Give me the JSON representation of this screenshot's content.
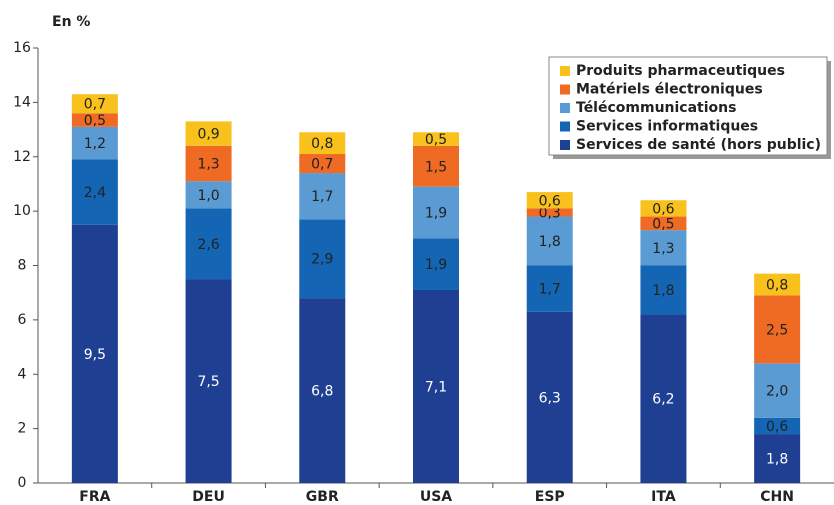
{
  "chart_data": {
    "type": "stacked-bar",
    "y_label": "En %",
    "categories": [
      "FRA",
      "DEU",
      "GBR",
      "USA",
      "ESP",
      "ITA",
      "CHN"
    ],
    "series": [
      {
        "name": "Services de santé (hors public)",
        "color": "#1f3f93",
        "values": [
          9.5,
          7.5,
          6.8,
          7.1,
          6.3,
          6.2,
          1.8
        ],
        "value_labels": [
          "9,5",
          "7,5",
          "6,8",
          "7,1",
          "6,3",
          "6,2",
          "1,8"
        ]
      },
      {
        "name": "Services informatiques",
        "color": "#1466b4",
        "values": [
          2.4,
          2.6,
          2.9,
          1.9,
          1.7,
          1.8,
          0.6
        ],
        "value_labels": [
          "2,4",
          "2,6",
          "2,9",
          "1,9",
          "1,7",
          "1,8",
          "0,6"
        ]
      },
      {
        "name": "Télécommunications",
        "color": "#5a9bd3",
        "values": [
          1.2,
          1.0,
          1.7,
          1.9,
          1.8,
          1.3,
          2.0
        ],
        "value_labels": [
          "1,2",
          "1,0",
          "1,7",
          "1,9",
          "1,8",
          "1,3",
          "2,0"
        ]
      },
      {
        "name": "Matériels électroniques",
        "color": "#ef6a22",
        "values": [
          0.5,
          1.3,
          0.7,
          1.5,
          0.3,
          0.5,
          2.5
        ],
        "value_labels": [
          "0,5",
          "1,3",
          "0,7",
          "1,5",
          "0,3",
          "0,5",
          "2,5"
        ]
      },
      {
        "name": "Produits pharmaceutiques",
        "color": "#f8c11c",
        "values": [
          0.7,
          0.9,
          0.8,
          0.5,
          0.6,
          0.6,
          0.8
        ],
        "value_labels": [
          "0,7",
          "0,9",
          "0,8",
          "0,5",
          "0,6",
          "0,6",
          "0,8"
        ]
      }
    ],
    "ylim": [
      0,
      16
    ],
    "yticks": [
      0,
      2,
      4,
      6,
      8,
      10,
      12,
      14,
      16
    ],
    "legend": "top-right"
  }
}
